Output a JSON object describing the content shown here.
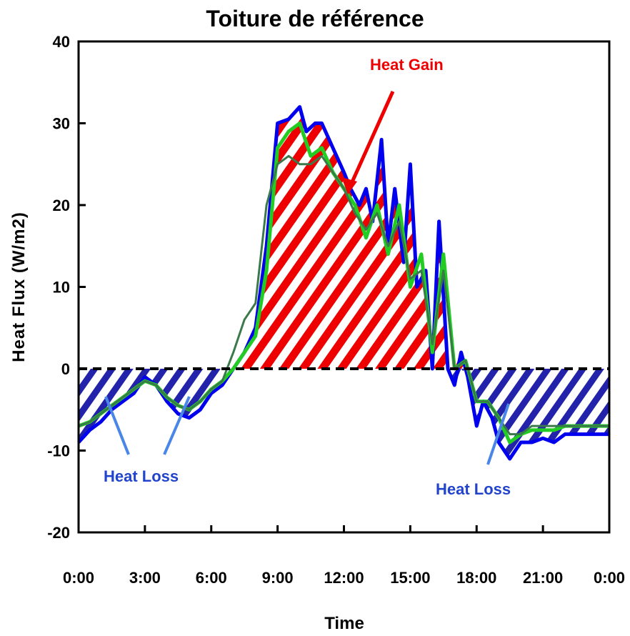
{
  "chart_data": {
    "type": "line",
    "title": "Toiture de référence",
    "xlabel": "Time",
    "ylabel": "Heat Flux (W/m2)",
    "x_ticks": [
      "0:00",
      "3:00",
      "6:00",
      "9:00",
      "12:00",
      "15:00",
      "18:00",
      "21:00",
      "0:00"
    ],
    "xlim": [
      0,
      24
    ],
    "y_ticks": [
      40,
      30,
      20,
      10,
      0,
      -10,
      -20
    ],
    "ylim": [
      -20,
      40
    ],
    "grid": false,
    "colors": {
      "series_blue": "#0000ee",
      "series_green": "#22cc22",
      "series_darkgreen": "#3a7a4a",
      "heat_gain": "#ee0000",
      "heat_loss_hatch": "#2222aa",
      "heat_loss_text": "#2244cc",
      "arrow_blue": "#4a86e8"
    },
    "series": [
      {
        "x": [
          0,
          0.5,
          1,
          1.5,
          2,
          2.5,
          3,
          3.5,
          4,
          4.5,
          5,
          5.5,
          6,
          6.5,
          7,
          7.5,
          8,
          8.5,
          9,
          9.5,
          10,
          10.3,
          10.7,
          11,
          11.5,
          12,
          12.3,
          12.7,
          13,
          13.3,
          13.7,
          14,
          14.3,
          14.7,
          15,
          15.3,
          15.7,
          16,
          16.3,
          16.7,
          17,
          17.3,
          17.6,
          18,
          18.3,
          18.7,
          19,
          19.5,
          20,
          20.5,
          21,
          21.5,
          22,
          22.5,
          23,
          23.5,
          24
        ],
        "y": [
          -9,
          -7.5,
          -6.5,
          -5,
          -4,
          -3,
          -1,
          -2,
          -4,
          -5.5,
          -6,
          -5,
          -3,
          -2,
          0,
          2,
          5,
          15,
          30,
          30.5,
          32,
          29,
          30,
          30,
          27,
          24,
          22,
          20,
          22,
          18,
          28,
          15,
          22,
          13,
          25,
          10,
          12,
          0,
          18,
          0,
          -2,
          2,
          -1,
          -7,
          -4,
          -6,
          -9,
          -11,
          -9,
          -9,
          -8.5,
          -9,
          -8,
          -8,
          -8,
          -8,
          -8
        ]
      },
      {
        "x": [
          0,
          0.5,
          1,
          1.5,
          2,
          2.5,
          3,
          3.5,
          4,
          4.5,
          5,
          5.5,
          6,
          6.5,
          7,
          7.5,
          8,
          8.5,
          9,
          9.5,
          10,
          10.5,
          11,
          11.5,
          12,
          12.5,
          13,
          13.5,
          14,
          14.5,
          15,
          15.5,
          16,
          16.5,
          17,
          17.5,
          18,
          18.5,
          19,
          19.5,
          20,
          20.5,
          21,
          21.5,
          22,
          22.5,
          23,
          23.5,
          24
        ],
        "y": [
          -7,
          -6.5,
          -5.5,
          -4.5,
          -3.5,
          -2.5,
          -1.5,
          -2,
          -3.5,
          -4.5,
          -5,
          -4,
          -2.5,
          -1.5,
          0,
          2,
          4,
          12,
          27,
          29,
          30,
          26,
          27,
          24,
          22,
          20,
          16,
          20,
          14,
          20,
          10,
          14,
          2,
          14,
          0,
          1,
          -4,
          -4,
          -6,
          -9,
          -8,
          -7.5,
          -7.5,
          -7.5,
          -7,
          -7,
          -7,
          -7,
          -7
        ]
      },
      {
        "x": [
          0,
          0.5,
          1,
          1.5,
          2,
          2.5,
          3,
          3.5,
          4,
          4.5,
          5,
          5.5,
          6,
          6.5,
          7,
          7.5,
          8,
          8.5,
          9,
          9.5,
          10,
          10.5,
          11,
          11.5,
          12,
          12.5,
          13,
          13.5,
          14,
          14.5,
          15,
          15.5,
          16,
          16.5,
          17,
          17.5,
          18,
          18.5,
          19,
          19.5,
          20,
          20.5,
          21,
          21.5,
          22,
          22.5,
          23,
          23.5,
          24
        ],
        "y": [
          -7,
          -6.5,
          -5.5,
          -4.5,
          -3.5,
          -2.5,
          -1.5,
          -2,
          -3.5,
          -4.5,
          -5,
          -4,
          -2.5,
          -1.5,
          2,
          6,
          8,
          20,
          25,
          26,
          25,
          25,
          26,
          24,
          22,
          19,
          17,
          19,
          15,
          18,
          11,
          12,
          3,
          12,
          0,
          1,
          -4,
          -4,
          -6,
          -8,
          -8,
          -7,
          -7,
          -7,
          -7,
          -7,
          -7,
          -7,
          -7
        ]
      }
    ],
    "annotations": [
      "Heat Gain",
      "Heat Loss",
      "Heat Loss"
    ]
  }
}
